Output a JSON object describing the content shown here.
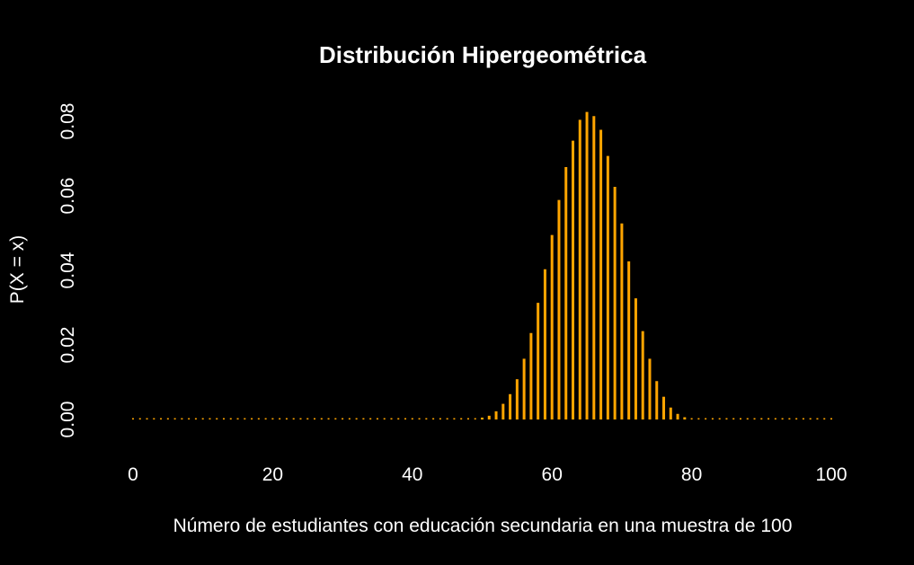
{
  "chart_data": {
    "type": "bar",
    "title": "Distribución Hipergeométrica",
    "xlabel": "Número de estudiantes con educación secundaria en una muestra de 100",
    "ylabel": "P(X = x)",
    "xlim": [
      0,
      100
    ],
    "ylim": [
      0,
      0.085
    ],
    "x_ticks": [
      0,
      20,
      40,
      60,
      80,
      100
    ],
    "x_tick_labels": [
      "0",
      "20",
      "40",
      "60",
      "80",
      "100"
    ],
    "y_ticks": [
      0,
      0.02,
      0.04,
      0.06,
      0.08
    ],
    "y_tick_labels": [
      "0.00",
      "0.02",
      "0.04",
      "0.06",
      "0.08"
    ],
    "grid": false,
    "legend": "none",
    "bar_color": "#FFA500",
    "background": "#000000",
    "x": [
      0,
      1,
      2,
      3,
      4,
      5,
      6,
      7,
      8,
      9,
      10,
      11,
      12,
      13,
      14,
      15,
      16,
      17,
      18,
      19,
      20,
      21,
      22,
      23,
      24,
      25,
      26,
      27,
      28,
      29,
      30,
      31,
      32,
      33,
      34,
      35,
      36,
      37,
      38,
      39,
      40,
      41,
      42,
      43,
      44,
      45,
      46,
      47,
      48,
      49,
      50,
      51,
      52,
      53,
      54,
      55,
      56,
      57,
      58,
      59,
      60,
      61,
      62,
      63,
      64,
      65,
      66,
      67,
      68,
      69,
      70,
      71,
      72,
      73,
      74,
      75,
      76,
      77,
      78,
      79,
      80,
      81,
      82,
      83,
      84,
      85,
      86,
      87,
      88,
      89,
      90,
      91,
      92,
      93,
      94,
      95,
      96,
      97,
      98,
      99,
      100
    ],
    "values": [
      0,
      0,
      0,
      0,
      0,
      0,
      0,
      0,
      0,
      0,
      0,
      0,
      0,
      0,
      0,
      0,
      0,
      0,
      0,
      0,
      0,
      0,
      0,
      0,
      0,
      0,
      0,
      0,
      0,
      0,
      0,
      0,
      0,
      0,
      0,
      0,
      0,
      0,
      0,
      0,
      0,
      0,
      0,
      0,
      0,
      0,
      0,
      0,
      0,
      0,
      0.0005,
      0.001,
      0.0022,
      0.0042,
      0.0068,
      0.0108,
      0.0163,
      0.0232,
      0.0313,
      0.0403,
      0.0495,
      0.0589,
      0.0677,
      0.0748,
      0.0804,
      0.0825,
      0.0814,
      0.0777,
      0.0707,
      0.0624,
      0.0526,
      0.0424,
      0.0325,
      0.0237,
      0.0163,
      0.0103,
      0.0061,
      0.0032,
      0.0015,
      0.0006,
      0.0002,
      0,
      0,
      0,
      0,
      0,
      0,
      0,
      0,
      0,
      0,
      0,
      0,
      0,
      0,
      0,
      0,
      0,
      0,
      0,
      0
    ]
  }
}
